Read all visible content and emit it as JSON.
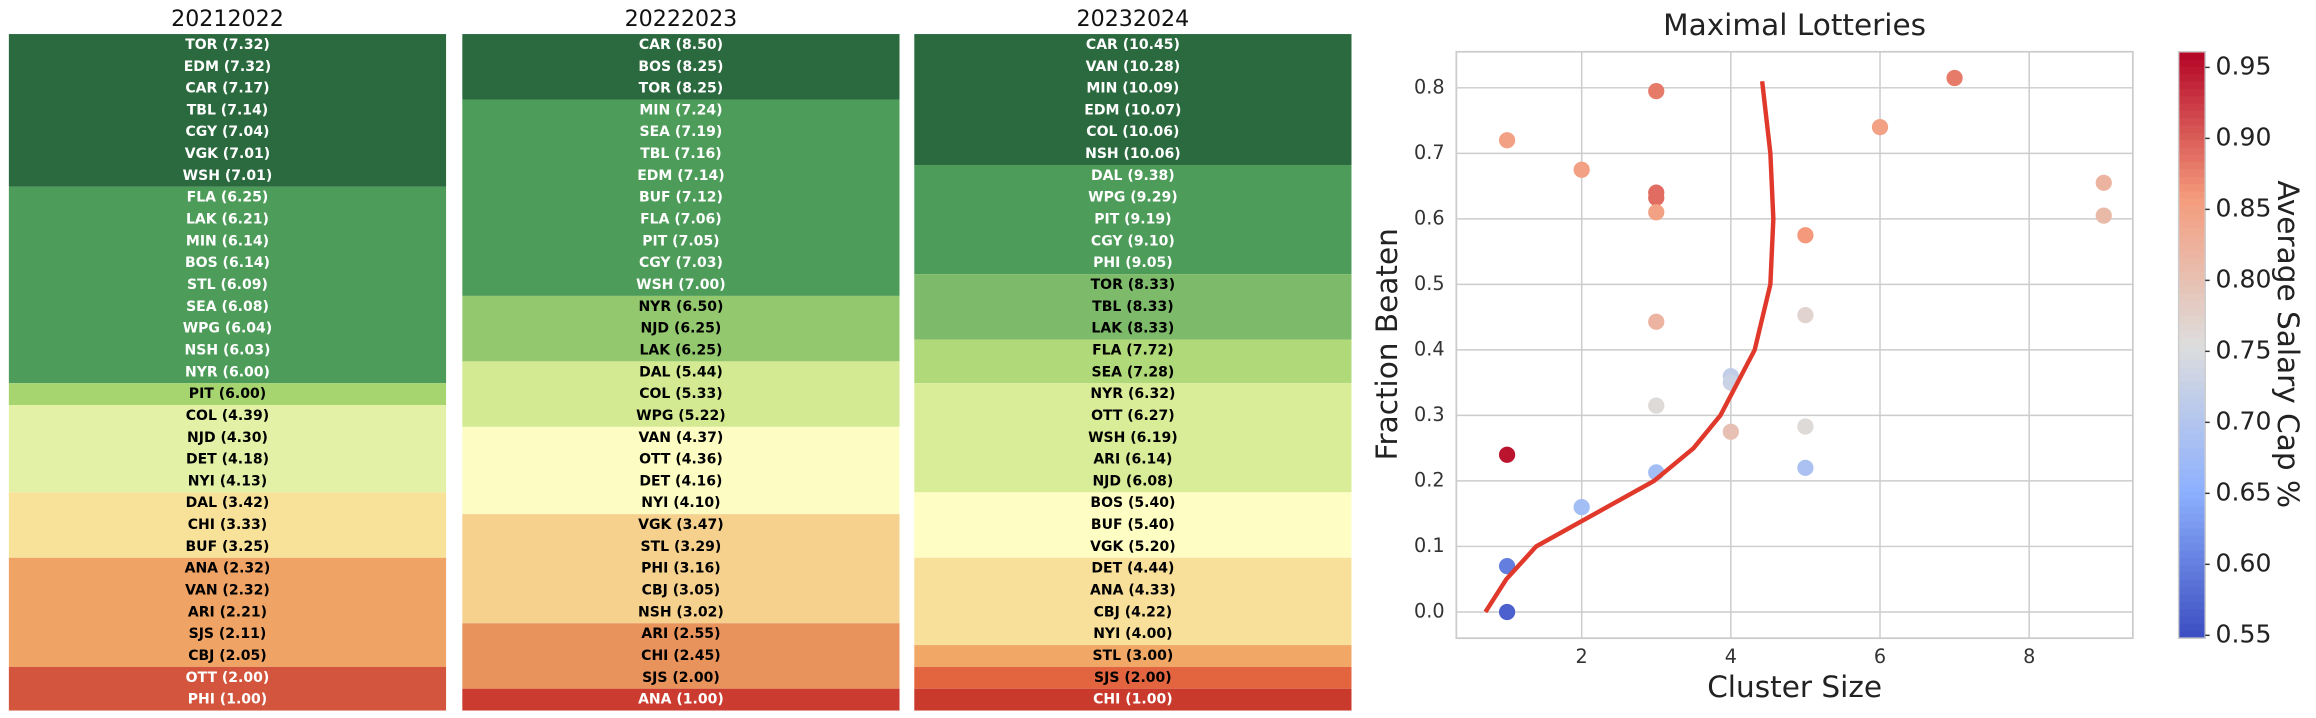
{
  "chart_data": [
    {
      "type": "ranking",
      "columns": [
        {
          "title": "20212022",
          "groups": [
            {
              "color": "#2b6a3e",
              "labels": [
                "TOR (7.32)",
                "EDM (7.32)",
                "CAR (7.17)",
                "TBL (7.14)",
                "CGY (7.04)",
                "VGK (7.01)",
                "WSH (7.01)"
              ]
            },
            {
              "color": "#4e9c5a",
              "labels": [
                "FLA (6.25)",
                "LAK (6.21)",
                "MIN (6.14)",
                "BOS (6.14)",
                "STL (6.09)",
                "SEA (6.08)",
                "WPG (6.04)",
                "NSH (6.03)",
                "NYR (6.00)"
              ]
            },
            {
              "color": "#a6d56f",
              "labels": [
                "PIT (6.00)"
              ]
            },
            {
              "color": "#e3f1a6",
              "labels": [
                "COL (4.39)",
                "NJD (4.30)",
                "DET (4.18)",
                "NYI (4.13)"
              ]
            },
            {
              "color": "#f8e29a",
              "labels": [
                "DAL (3.42)",
                "CHI (3.33)",
                "BUF (3.25)"
              ]
            },
            {
              "color": "#efa466",
              "labels": [
                "ANA (2.32)",
                "VAN (2.32)",
                "ARI (2.21)",
                "SJS (2.11)",
                "CBJ (2.05)"
              ]
            },
            {
              "color": "#d3553d",
              "labels": [
                "OTT (2.00)",
                "PHI (1.00)"
              ]
            }
          ]
        },
        {
          "title": "20222023",
          "groups": [
            {
              "color": "#2b6a3e",
              "labels": [
                "CAR (8.50)",
                "BOS (8.25)",
                "TOR (8.25)"
              ]
            },
            {
              "color": "#4e9c5a",
              "labels": [
                "MIN (7.24)",
                "SEA (7.19)",
                "TBL (7.16)",
                "EDM (7.14)",
                "BUF (7.12)",
                "FLA (7.06)",
                "PIT (7.05)",
                "CGY (7.03)",
                "WSH (7.00)"
              ]
            },
            {
              "color": "#93c86f",
              "labels": [
                "NYR (6.50)",
                "NJD (6.25)",
                "LAK (6.25)"
              ]
            },
            {
              "color": "#d3e992",
              "labels": [
                "DAL (5.44)",
                "COL (5.33)",
                "WPG (5.22)"
              ]
            },
            {
              "color": "#fdfdc3",
              "labels": [
                "VAN (4.37)",
                "OTT (4.36)",
                "DET (4.16)",
                "NYI (4.10)"
              ]
            },
            {
              "color": "#f6d18e",
              "labels": [
                "VGK (3.47)",
                "STL (3.29)",
                "PHI (3.16)",
                "CBJ (3.05)",
                "NSH (3.02)"
              ]
            },
            {
              "color": "#e8925c",
              "labels": [
                "ARI (2.55)",
                "CHI (2.45)",
                "SJS (2.00)"
              ]
            },
            {
              "color": "#cc3b2f",
              "labels": [
                "ANA (1.00)"
              ]
            }
          ]
        },
        {
          "title": "20232024",
          "groups": [
            {
              "color": "#2b6a3e",
              "labels": [
                "CAR (10.45)",
                "VAN (10.28)",
                "MIN (10.09)",
                "EDM (10.07)",
                "COL (10.06)",
                "NSH (10.06)"
              ]
            },
            {
              "color": "#4e9c5a",
              "labels": [
                "DAL (9.38)",
                "WPG (9.29)",
                "PIT (9.19)",
                "CGY (9.10)",
                "PHI (9.05)"
              ]
            },
            {
              "color": "#7dbb6a",
              "labels": [
                "TOR (8.33)",
                "TBL (8.33)",
                "LAK (8.33)"
              ]
            },
            {
              "color": "#b0d97a",
              "labels": [
                "FLA (7.72)",
                "SEA (7.28)"
              ]
            },
            {
              "color": "#d9ec97",
              "labels": [
                "NYR (6.32)",
                "OTT (6.27)",
                "WSH (6.19)",
                "ARI (6.14)",
                "NJD (6.08)"
              ]
            },
            {
              "color": "#fefec4",
              "labels": [
                "BOS (5.40)",
                "BUF (5.40)",
                "VGK (5.20)"
              ]
            },
            {
              "color": "#f8e09a",
              "labels": [
                "DET (4.44)",
                "ANA (4.33)",
                "CBJ (4.22)",
                "NYI (4.00)"
              ]
            },
            {
              "color": "#f1a766",
              "labels": [
                "STL (3.00)"
              ]
            },
            {
              "color": "#e2653f",
              "labels": [
                "SJS (2.00)"
              ]
            },
            {
              "color": "#c93a2c",
              "labels": [
                "CHI (1.00)"
              ]
            }
          ]
        }
      ]
    },
    {
      "type": "scatter",
      "title": "Maximal Lotteries",
      "xlabel": "Cluster Size",
      "ylabel": "Fraction Beaten",
      "xlim": [
        0.32,
        9.39
      ],
      "ylim": [
        -0.04,
        0.855
      ],
      "xticks": [
        2,
        4,
        6,
        8
      ],
      "yticks": [
        {
          "value": 0,
          "label": "0.0"
        },
        0.1,
        0.2,
        0.3,
        0.4,
        0.5,
        0.6,
        0.7,
        0.8
      ],
      "grid": true,
      "series": [
        {
          "x": [
            1,
            1,
            1,
            1,
            2,
            2,
            3,
            3,
            3,
            3,
            3,
            3,
            3,
            4,
            4,
            4,
            5,
            5,
            5,
            5,
            6,
            7,
            9,
            9
          ],
          "y": [
            0.72,
            0.24,
            0.07,
            0.0,
            0.675,
            0.16,
            0.795,
            0.64,
            0.632,
            0.61,
            0.443,
            0.315,
            0.213,
            0.36,
            0.35,
            0.275,
            0.575,
            0.453,
            0.283,
            0.22,
            0.74,
            0.815,
            0.655,
            0.605
          ],
          "c": [
            0.85,
            0.95,
            0.6,
            0.57,
            0.85,
            0.68,
            0.88,
            0.89,
            0.89,
            0.85,
            0.82,
            0.76,
            0.68,
            0.72,
            0.73,
            0.8,
            0.86,
            0.77,
            0.76,
            0.69,
            0.85,
            0.88,
            0.82,
            0.81
          ]
        },
        {
          "kind": "line",
          "color": "#e0382a",
          "x": [
            0.71,
            0.99,
            1.39,
            2.18,
            2.97,
            3.5,
            3.86,
            4.32,
            4.53,
            4.57,
            4.53,
            4.42
          ],
          "y": [
            0.0,
            0.05,
            0.1,
            0.15,
            0.2,
            0.25,
            0.3,
            0.4,
            0.5,
            0.6,
            0.7,
            0.81
          ]
        }
      ],
      "colorbar": {
        "label": "Average Salary Cap %",
        "cmap": "coolwarm",
        "clim": [
          0.548,
          0.961
        ],
        "ticks": [
          0.55,
          {
            "value": 0.6,
            "label": "0.60"
          },
          0.65,
          {
            "value": 0.7,
            "label": "0.70"
          },
          0.75,
          {
            "value": 0.8,
            "label": "0.80"
          },
          0.85,
          {
            "value": 0.9,
            "label": "0.90"
          },
          0.95
        ]
      }
    }
  ]
}
